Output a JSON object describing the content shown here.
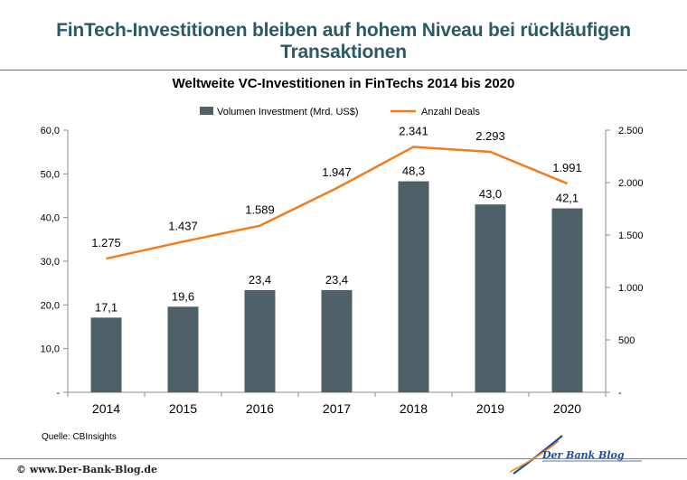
{
  "headline": "FinTech-Investitionen bleiben auf hohem Niveau bei rückläufigen Transaktionen",
  "source": "Quelle:  CBInsights",
  "copyright": "© www.Der-Bank-Blog.de",
  "logo_text": "Der Bank Blog",
  "colors": {
    "headline": "#2a5a66",
    "bar": "#4f6168",
    "line": "#f07d1d",
    "rule": "#9c4f8a",
    "logo_blue": "#1f4e9c",
    "logo_orange": "#f08a1d"
  },
  "chart_data": {
    "type": "bar",
    "title": "Weltweite VC-Investitionen in FinTechs 2014 bis 2020",
    "categories": [
      "2014",
      "2015",
      "2016",
      "2017",
      "2018",
      "2019",
      "2020"
    ],
    "legend_position": "top",
    "grid": false,
    "series": [
      {
        "name": "Volumen Investment (Mrd. US$)",
        "type": "bar",
        "axis": "left",
        "values": [
          17.1,
          19.6,
          23.4,
          23.4,
          48.3,
          43.0,
          42.1
        ],
        "labels": [
          "17,1",
          "19,6",
          "23,4",
          "23,4",
          "48,3",
          "43,0",
          "42,1"
        ]
      },
      {
        "name": "Anzahl Deals",
        "type": "line",
        "axis": "right",
        "values": [
          1275,
          1437,
          1589,
          1947,
          2341,
          2293,
          1991
        ],
        "labels": [
          "1.275",
          "1.437",
          "1.589",
          "1.947",
          "2.341",
          "2.293",
          "1.991"
        ]
      }
    ],
    "y_left": {
      "range": [
        0,
        60
      ],
      "ticks": [
        0,
        10,
        20,
        30,
        40,
        50,
        60
      ],
      "tick_labels": [
        "-",
        "10,0",
        "20,0",
        "30,0",
        "40,0",
        "50,0",
        "60,0"
      ]
    },
    "y_right": {
      "range": [
        0,
        2500
      ],
      "ticks": [
        0,
        500,
        1000,
        1500,
        2000,
        2500
      ],
      "tick_labels": [
        "-",
        "500",
        "1.000",
        "1.500",
        "2.000",
        "2.500"
      ]
    }
  }
}
